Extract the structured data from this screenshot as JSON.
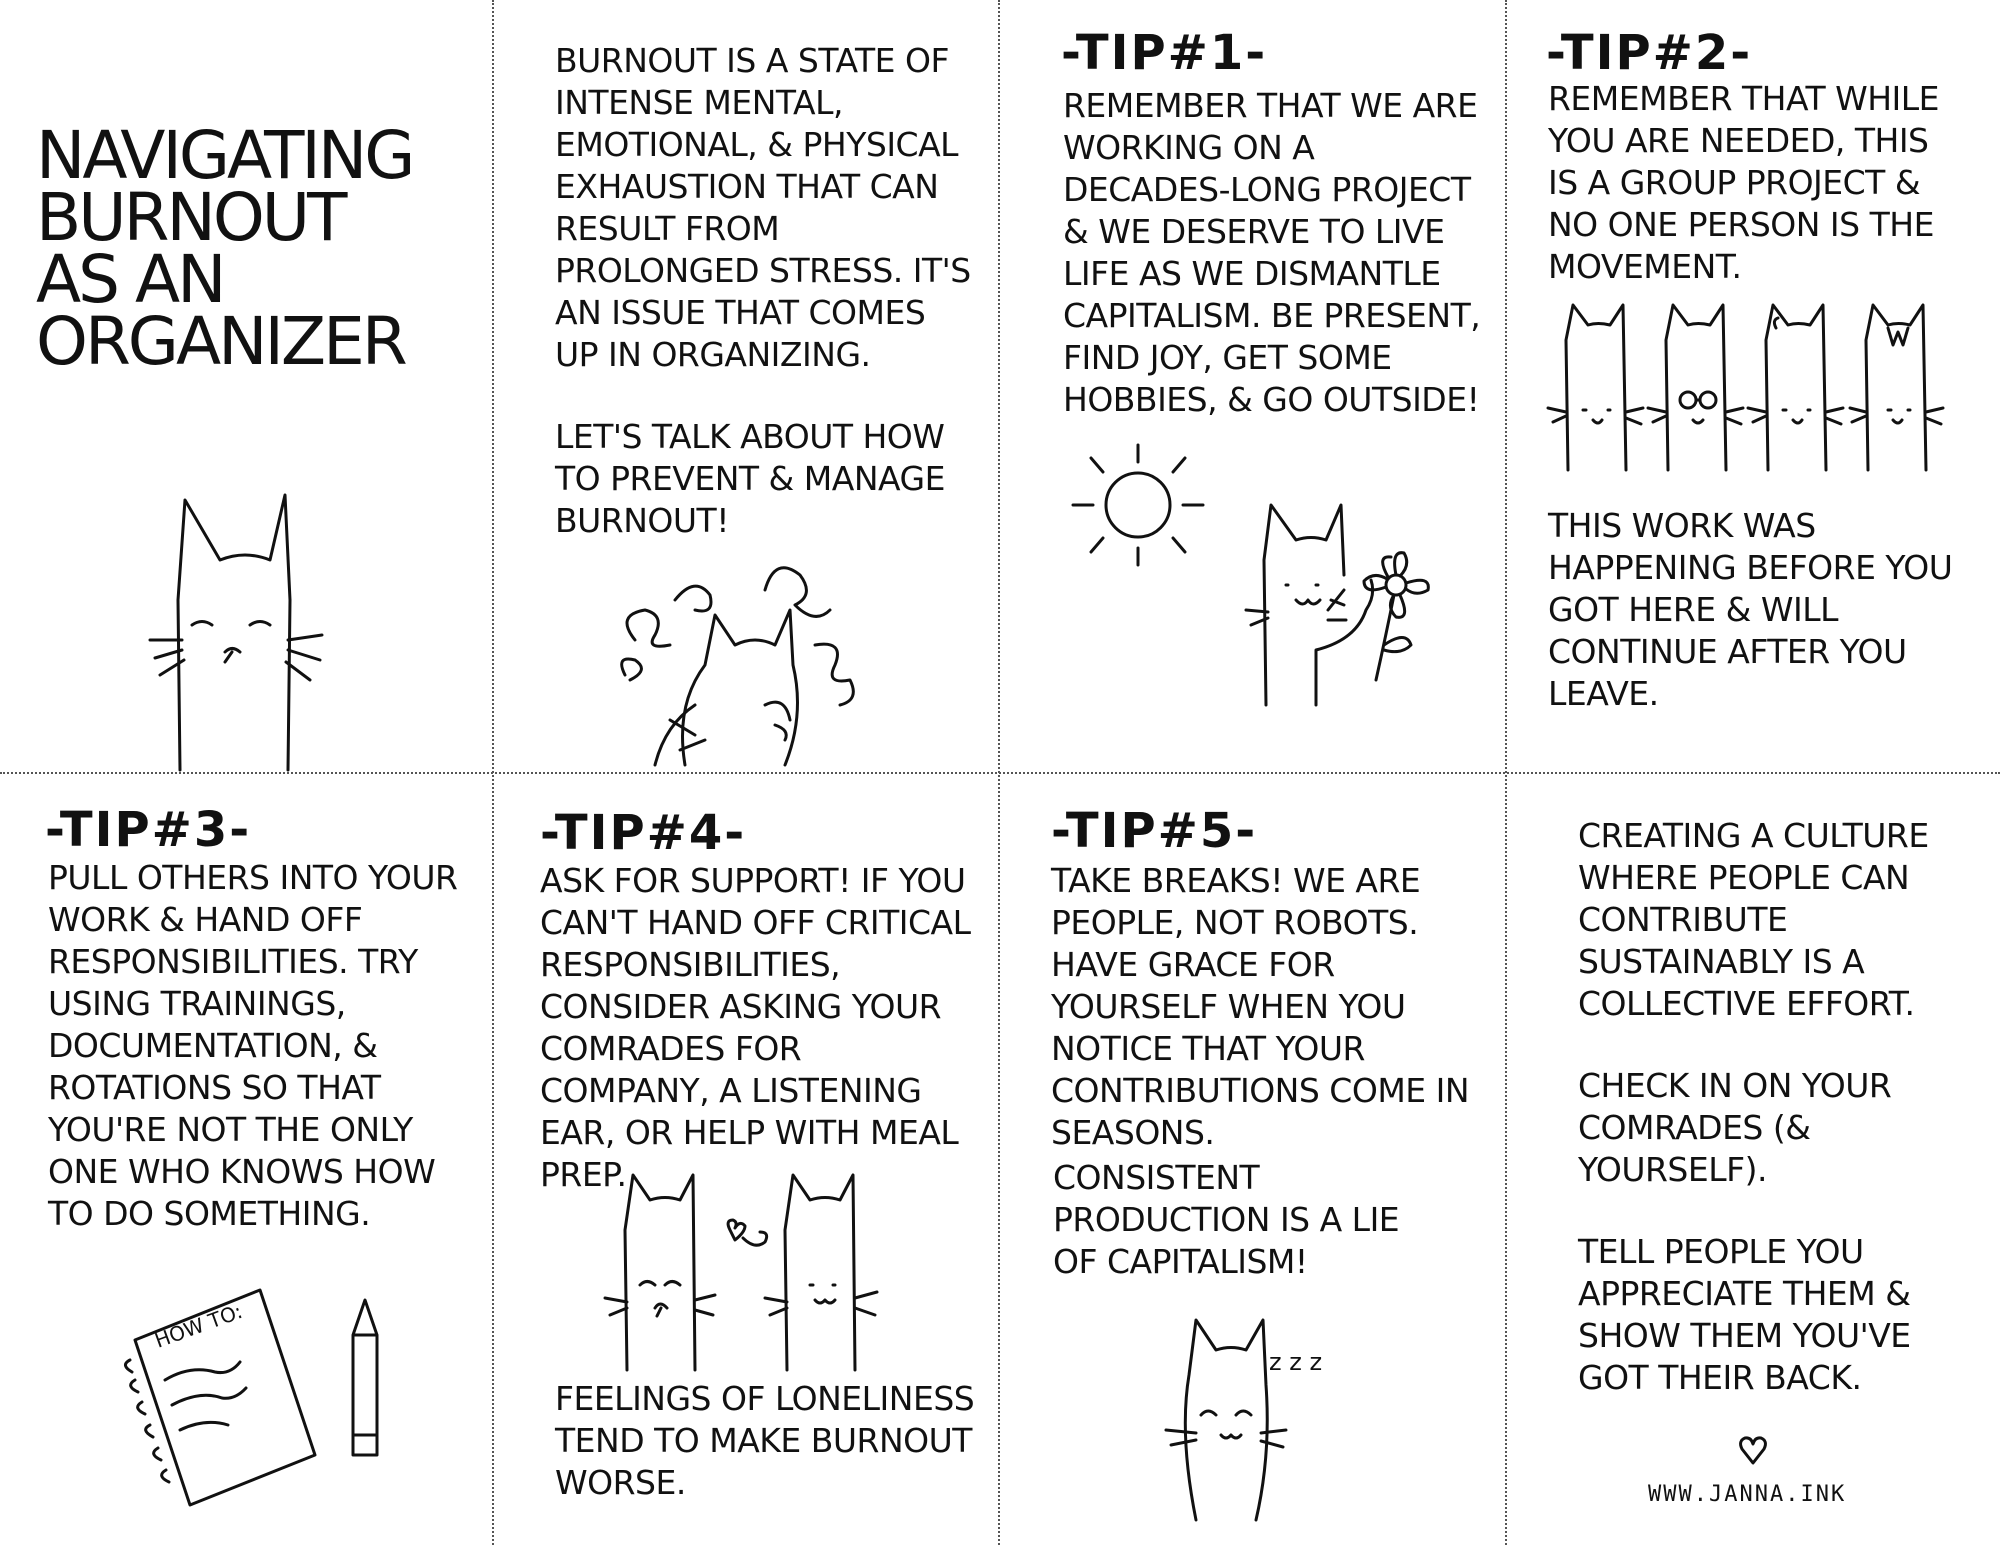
{
  "title_card": {
    "title_lines": [
      "NAVIGATING",
      "BURNOUT",
      "AS AN",
      "ORGANIZER"
    ]
  },
  "intro": {
    "paragraphs": [
      "BURNOUT IS A STATE OF INTENSE MENTAL, EMOTIONAL, & PHYSICAL EXHAUSTION THAT CAN RESULT FROM PROLONGED STRESS. IT'S AN ISSUE THAT COMES UP IN ORGANIZING.",
      "LET'S TALK ABOUT HOW TO PREVENT & MANAGE BURNOUT!"
    ]
  },
  "tip1": {
    "heading": "-TIP#1-",
    "text": "REMEMBER THAT WE ARE WORKING ON A DECADES-LONG PROJECT & WE DESERVE TO LIVE LIFE AS WE DISMANTLE CAPITALISM. BE PRESENT, FIND JOY, GET SOME HOBBIES, & GO OUTSIDE!"
  },
  "tip2": {
    "heading": "-TIP#2-",
    "text": "REMEMBER THAT WHILE YOU ARE NEEDED, THIS IS A GROUP PROJECT & NO ONE PERSON IS THE MOVEMENT.",
    "text2": "THIS WORK WAS HAPPENING BEFORE YOU GOT HERE & WILL CONTINUE AFTER YOU LEAVE."
  },
  "tip3": {
    "heading": "-TIP#3-",
    "text": "PULL OTHERS INTO YOUR WORK & HAND OFF RESPONSIBILITIES. TRY USING TRAININGS, DOCUMENTATION, & ROTATIONS SO THAT YOU'RE NOT THE ONLY ONE WHO KNOWS HOW TO DO SOMETHING.",
    "notebook_label": "HOW TO:"
  },
  "tip4": {
    "heading": "-TIP#4-",
    "text": "ASK FOR SUPPORT! IF YOU CAN'T HAND OFF CRITICAL RESPONSIBILITIES, CONSIDER ASKING YOUR COMRADES FOR COMPANY, A LISTENING EAR, OR HELP WITH MEAL PREP.",
    "text2": "FEELINGS OF LONELINESS TEND TO MAKE BURNOUT WORSE."
  },
  "tip5": {
    "heading": "-TIP#5-",
    "text": "TAKE BREAKS! WE ARE PEOPLE, NOT ROBOTS. HAVE GRACE FOR YOURSELF WHEN YOU NOTICE THAT YOUR CONTRIBUTIONS COME IN SEASONS.",
    "text2": "CONSISTENT PRODUCTION IS A LIE OF CAPITALISM!",
    "snore": "z z z"
  },
  "closing": {
    "paragraphs": [
      "CREATING A CULTURE WHERE PEOPLE CAN CONTRIBUTE SUSTAINABLY IS A COLLECTIVE EFFORT.",
      "CHECK IN ON YOUR COMRADES (& YOURSELF).",
      "TELL PEOPLE YOU APPRECIATE THEM & SHOW THEM YOU'VE GOT THEIR BACK."
    ],
    "url": "WWW.JANNA.INK"
  },
  "icons": [
    "cat-icon",
    "sun-icon",
    "flower-icon",
    "heart-icon",
    "notebook-icon",
    "pencil-icon",
    "glasses-icon"
  ],
  "colors": {
    "ink": "#111111",
    "background": "#ffffff",
    "divider": "#555555"
  }
}
